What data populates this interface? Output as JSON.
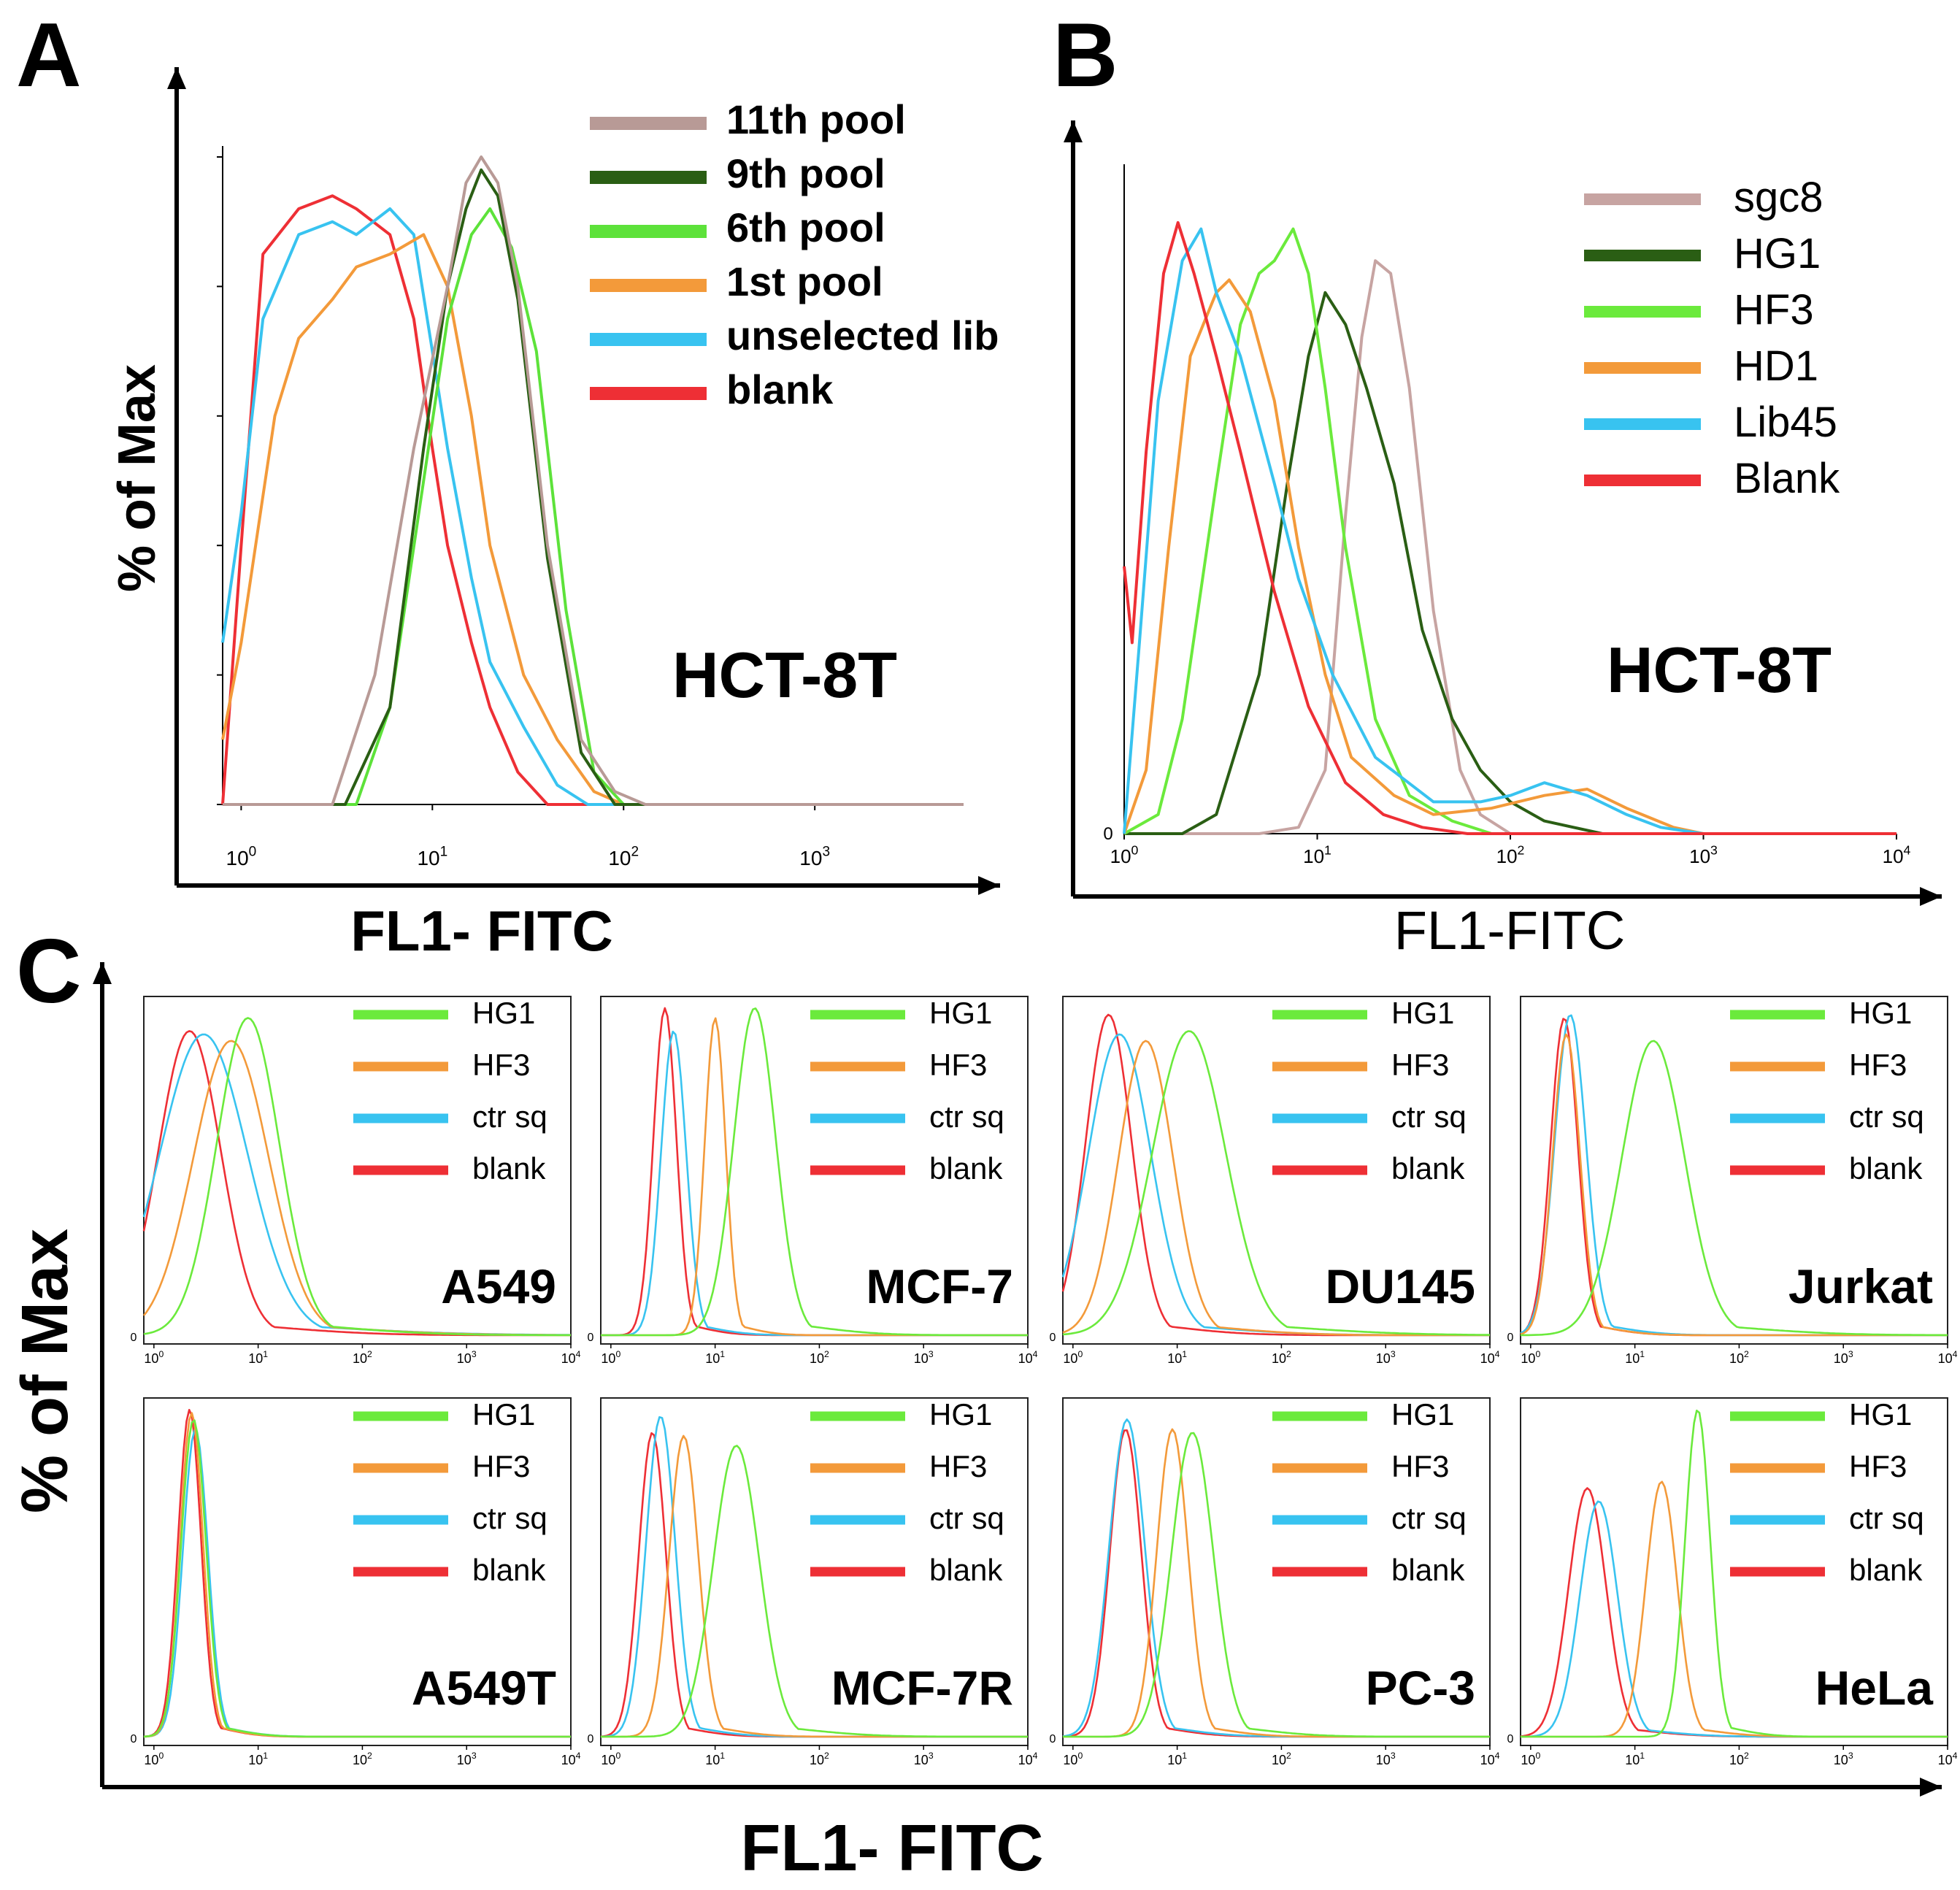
{
  "colors": {
    "pool11": "#b89a96",
    "pool9": "#2a5e14",
    "pool6": "#5de23a",
    "pool1": "#f39a3a",
    "unselected": "#38c3f0",
    "blank": "#ee2f35",
    "sgc8": "#c7a4a2",
    "green": "#6bea3c",
    "orange": "#f39a3a",
    "cyan": "#38c3f0",
    "red": "#ee2f35",
    "axis": "#000000"
  },
  "chart_data": [
    {
      "id": "A",
      "type": "line",
      "panel_label": "A",
      "xscale": "log",
      "xlim": [
        0.8,
        6000
      ],
      "ylim": [
        0,
        100
      ],
      "xlabel": "FL1- FITC",
      "ylabel": "% of  Max",
      "annotation": "HCT-8T",
      "x_ticks": [
        {
          "pos": 1,
          "base": "10",
          "exp": "0"
        },
        {
          "pos": 10,
          "base": "10",
          "exp": "1"
        },
        {
          "pos": 100,
          "base": "10",
          "exp": "2"
        },
        {
          "pos": 1000,
          "base": "10",
          "exp": "3"
        }
      ],
      "legend": "top-right",
      "series": [
        {
          "name": "11th pool",
          "color": "pool11",
          "x": [
            0.8,
            3,
            5,
            8,
            12,
            15,
            18,
            22,
            28,
            40,
            60,
            90,
            130,
            6000
          ],
          "y": [
            0,
            0,
            20,
            55,
            80,
            96,
            100,
            96,
            80,
            40,
            10,
            2,
            0,
            0
          ]
        },
        {
          "name": "9th pool",
          "color": "pool9",
          "x": [
            0.8,
            3.5,
            6,
            9,
            12,
            15,
            18,
            22,
            28,
            40,
            60,
            90,
            6000
          ],
          "y": [
            0,
            0,
            15,
            55,
            80,
            92,
            98,
            94,
            78,
            38,
            8,
            0,
            0
          ]
        },
        {
          "name": "6th pool",
          "color": "pool6",
          "x": [
            0.8,
            4,
            6,
            9,
            12,
            16,
            20,
            26,
            35,
            50,
            70,
            100,
            6000
          ],
          "y": [
            0,
            0,
            15,
            50,
            75,
            88,
            92,
            86,
            70,
            30,
            5,
            0,
            0
          ]
        },
        {
          "name": "1st pool",
          "color": "pool1",
          "x": [
            0.8,
            1,
            1.5,
            2,
            3,
            4,
            6,
            9,
            12,
            16,
            20,
            30,
            45,
            70,
            100,
            6000
          ],
          "y": [
            10,
            25,
            60,
            72,
            78,
            83,
            85,
            88,
            80,
            60,
            40,
            20,
            10,
            2,
            0,
            0
          ]
        },
        {
          "name": "unselected  lib",
          "color": "unselected",
          "x": [
            0.8,
            1,
            1.3,
            2,
            3,
            4,
            6,
            8,
            10,
            12,
            16,
            20,
            30,
            45,
            65,
            6000
          ],
          "y": [
            25,
            45,
            75,
            88,
            90,
            88,
            92,
            88,
            70,
            55,
            35,
            22,
            12,
            3,
            0,
            0
          ]
        },
        {
          "name": "blank",
          "color": "blank",
          "x": [
            0.8,
            1,
            1.3,
            2,
            3,
            4,
            6,
            8,
            10,
            12,
            16,
            20,
            28,
            40,
            6000
          ],
          "y": [
            0,
            40,
            85,
            92,
            94,
            92,
            88,
            75,
            55,
            40,
            25,
            15,
            5,
            0,
            0
          ]
        }
      ]
    },
    {
      "id": "B",
      "type": "line",
      "panel_label": "B",
      "xscale": "log",
      "xlim": [
        1,
        10000
      ],
      "ylim": [
        0,
        100
      ],
      "xlabel": "FL1-FITC",
      "ylabel": "",
      "annotation": "HCT-8T",
      "y_zero_label": "0",
      "x_ticks": [
        {
          "pos": 1,
          "base": "10",
          "exp": "0"
        },
        {
          "pos": 10,
          "base": "10",
          "exp": "1"
        },
        {
          "pos": 100,
          "base": "10",
          "exp": "2"
        },
        {
          "pos": 1000,
          "base": "10",
          "exp": "3"
        },
        {
          "pos": 10000,
          "base": "10",
          "exp": "4"
        }
      ],
      "legend": "top-right",
      "series": [
        {
          "name": "sgc8",
          "color": "sgc8",
          "x": [
            1,
            5,
            8,
            11,
            14,
            17,
            20,
            24,
            30,
            40,
            55,
            70,
            100,
            10000
          ],
          "y": [
            0,
            0,
            1,
            10,
            50,
            78,
            90,
            88,
            70,
            35,
            10,
            3,
            0,
            0
          ]
        },
        {
          "name": "HG1",
          "color": "pool9",
          "x": [
            1,
            2,
            3,
            5,
            7,
            9,
            11,
            14,
            18,
            25,
            35,
            50,
            70,
            100,
            150,
            300,
            10000
          ],
          "y": [
            0,
            0,
            3,
            25,
            55,
            75,
            85,
            80,
            70,
            55,
            32,
            18,
            10,
            5,
            2,
            0,
            0
          ]
        },
        {
          "name": "HF3",
          "color": "green",
          "x": [
            1,
            1.5,
            2,
            3,
            4,
            5,
            6,
            7.5,
            9,
            11,
            14,
            20,
            30,
            50,
            80,
            10000
          ],
          "y": [
            0,
            3,
            18,
            55,
            80,
            88,
            90,
            95,
            88,
            70,
            45,
            18,
            6,
            2,
            0,
            0
          ]
        },
        {
          "name": "HD1",
          "color": "orange",
          "x": [
            1,
            1.3,
            1.7,
            2.2,
            3,
            3.5,
            4.5,
            6,
            8,
            11,
            15,
            25,
            40,
            80,
            150,
            250,
            400,
            700,
            1000,
            10000
          ],
          "y": [
            0,
            10,
            45,
            75,
            85,
            87,
            82,
            68,
            45,
            25,
            12,
            6,
            3,
            4,
            6,
            7,
            4,
            1,
            0,
            0
          ]
        },
        {
          "name": "Lib45",
          "color": "cyan",
          "x": [
            1,
            1.2,
            1.5,
            2,
            2.5,
            3,
            4,
            6,
            8,
            12,
            20,
            40,
            70,
            100,
            150,
            250,
            400,
            600,
            1000,
            10000
          ],
          "y": [
            0,
            30,
            68,
            90,
            95,
            85,
            75,
            55,
            40,
            25,
            12,
            5,
            5,
            6,
            8,
            6,
            3,
            1,
            0,
            0
          ]
        },
        {
          "name": "Blank",
          "color": "red",
          "x": [
            1,
            1.1,
            1.3,
            1.6,
            1.9,
            2.3,
            3,
            4,
            6,
            9,
            14,
            22,
            35,
            60,
            10000
          ],
          "y": [
            42,
            30,
            60,
            88,
            96,
            88,
            75,
            60,
            38,
            20,
            8,
            3,
            1,
            0,
            0
          ]
        }
      ]
    },
    {
      "id": "C",
      "type": "line",
      "panel_label": "C",
      "xscale": "log",
      "xlim": [
        0.8,
        10000
      ],
      "ylim": [
        0,
        100
      ],
      "xlabel": "FL1- FITC",
      "ylabel": "% of Max",
      "legend_entries": [
        {
          "name": "HG1",
          "color": "green"
        },
        {
          "name": "HF3",
          "color": "orange"
        },
        {
          "name": "ctr sq",
          "color": "cyan"
        },
        {
          "name": "blank",
          "color": "red"
        }
      ],
      "x_ticks": [
        {
          "pos": 1,
          "base": "10",
          "exp": "0"
        },
        {
          "pos": 10,
          "base": "10",
          "exp": "1"
        },
        {
          "pos": 100,
          "base": "10",
          "exp": "2"
        },
        {
          "pos": 1000,
          "base": "10",
          "exp": "3"
        },
        {
          "pos": 10000,
          "base": "10",
          "exp": "4"
        }
      ],
      "y_zero_label": "0",
      "subplots": [
        {
          "name": "A549",
          "peaks": [
            {
              "series": "HG1",
              "center": 8,
              "height": 97,
              "width": 0.3
            },
            {
              "series": "HF3",
              "center": 5.5,
              "height": 90,
              "width": 0.36
            },
            {
              "series": "ctr sq",
              "center": 3,
              "height": 92,
              "width": 0.42
            },
            {
              "series": "blank",
              "center": 2.2,
              "height": 93,
              "width": 0.3
            }
          ]
        },
        {
          "name": "MCF-7",
          "peaks": [
            {
              "series": "HG1",
              "center": 24,
              "height": 100,
              "width": 0.2
            },
            {
              "series": "HF3",
              "center": 10,
              "height": 97,
              "width": 0.1
            },
            {
              "series": "ctr sq",
              "center": 4,
              "height": 93,
              "width": 0.12
            },
            {
              "series": "blank",
              "center": 3.3,
              "height": 100,
              "width": 0.11
            }
          ]
        },
        {
          "name": "DU145",
          "peaks": [
            {
              "series": "HG1",
              "center": 13,
              "height": 93,
              "width": 0.35
            },
            {
              "series": "HF3",
              "center": 5,
              "height": 90,
              "width": 0.26
            },
            {
              "series": "ctr sq",
              "center": 2.8,
              "height": 92,
              "width": 0.3
            },
            {
              "series": "blank",
              "center": 2.2,
              "height": 98,
              "width": 0.22
            }
          ]
        },
        {
          "name": "Jurkat",
          "peaks": [
            {
              "series": "HG1",
              "center": 15,
              "height": 90,
              "width": 0.3
            },
            {
              "series": "HF3",
              "center": 2.2,
              "height": 92,
              "width": 0.13
            },
            {
              "series": "ctr sq",
              "center": 2.4,
              "height": 98,
              "width": 0.15
            },
            {
              "series": "blank",
              "center": 2.1,
              "height": 97,
              "width": 0.13
            }
          ]
        },
        {
          "name": "A549T",
          "peaks": [
            {
              "series": "HG1",
              "center": 2.4,
              "height": 97,
              "width": 0.12
            },
            {
              "series": "HF3",
              "center": 2.3,
              "height": 99,
              "width": 0.11
            },
            {
              "series": "ctr sq",
              "center": 2.5,
              "height": 94,
              "width": 0.12
            },
            {
              "series": "blank",
              "center": 2.2,
              "height": 100,
              "width": 0.11
            }
          ]
        },
        {
          "name": "MCF-7R",
          "peaks": [
            {
              "series": "HG1",
              "center": 16,
              "height": 89,
              "width": 0.22
            },
            {
              "series": "HF3",
              "center": 5,
              "height": 92,
              "width": 0.14
            },
            {
              "series": "ctr sq",
              "center": 3,
              "height": 98,
              "width": 0.14
            },
            {
              "series": "blank",
              "center": 2.5,
              "height": 93,
              "width": 0.13
            }
          ]
        },
        {
          "name": "PC-3",
          "peaks": [
            {
              "series": "HG1",
              "center": 14,
              "height": 93,
              "width": 0.2
            },
            {
              "series": "HF3",
              "center": 9,
              "height": 94,
              "width": 0.15
            },
            {
              "series": "ctr sq",
              "center": 3.3,
              "height": 97,
              "width": 0.17
            },
            {
              "series": "blank",
              "center": 3.2,
              "height": 94,
              "width": 0.15
            }
          ]
        },
        {
          "name": "HeLa",
          "peaks": [
            {
              "series": "HG1",
              "center": 40,
              "height": 100,
              "width": 0.12
            },
            {
              "series": "HF3",
              "center": 18,
              "height": 78,
              "width": 0.15
            },
            {
              "series": "ctr sq",
              "center": 4.5,
              "height": 72,
              "width": 0.18
            },
            {
              "series": "blank",
              "center": 3.5,
              "height": 76,
              "width": 0.18
            }
          ]
        }
      ]
    }
  ]
}
